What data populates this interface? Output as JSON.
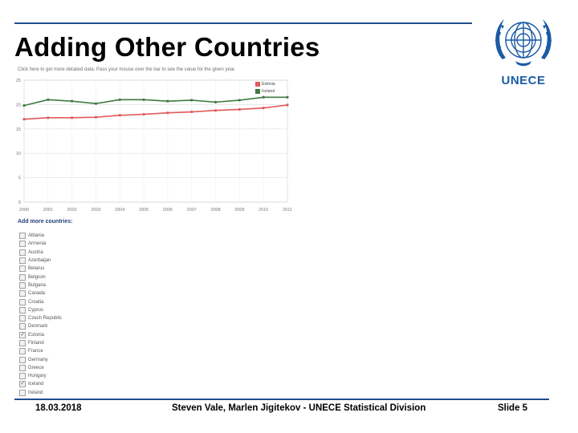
{
  "slide": {
    "title": "Adding Other Countries",
    "logo_text": "UNECE",
    "instruction": "Click here to get more detailed data. Pass your mouse over the bar to see the value for the given year.",
    "add_more_label": "Add more countries:",
    "footer": {
      "date": "18.03.2018",
      "center": "Steven Vale, Marlen Jigitekov - UNECE Statistical Division",
      "slide_number": "Slide 5"
    },
    "countries": [
      {
        "label": "Albania",
        "checked": false
      },
      {
        "label": "Armenia",
        "checked": false
      },
      {
        "label": "Austria",
        "checked": false
      },
      {
        "label": "Azerbaijan",
        "checked": false
      },
      {
        "label": "Belarus",
        "checked": false
      },
      {
        "label": "Belgium",
        "checked": false
      },
      {
        "label": "Bulgaria",
        "checked": false
      },
      {
        "label": "Canada",
        "checked": false
      },
      {
        "label": "Croatia",
        "checked": false
      },
      {
        "label": "Cyprus",
        "checked": false
      },
      {
        "label": "Czech Republic",
        "checked": false
      },
      {
        "label": "Denmark",
        "checked": false
      },
      {
        "label": "Estonia",
        "checked": true
      },
      {
        "label": "Finland",
        "checked": false
      },
      {
        "label": "France",
        "checked": false
      },
      {
        "label": "Germany",
        "checked": false
      },
      {
        "label": "Greece",
        "checked": false
      },
      {
        "label": "Hungary",
        "checked": false
      },
      {
        "label": "Iceland",
        "checked": true
      },
      {
        "label": "Ireland",
        "checked": false
      }
    ]
  },
  "chart_data": {
    "type": "line",
    "x": [
      "2000",
      "2001",
      "2002",
      "2003",
      "2004",
      "2005",
      "2006",
      "2007",
      "2008",
      "2009",
      "2010",
      "2011"
    ],
    "ylim": [
      0,
      25
    ],
    "yticks": [
      0,
      5,
      10,
      15,
      20,
      25
    ],
    "grid": true,
    "legend_position": "top-right",
    "series": [
      {
        "name": "Estonia",
        "color": "#e05a5a",
        "values": [
          17.0,
          17.3,
          17.3,
          17.4,
          17.8,
          18.0,
          18.3,
          18.5,
          18.8,
          19.0,
          19.3,
          19.9
        ]
      },
      {
        "name": "Iceland",
        "color": "#3e7a3e",
        "values": [
          19.8,
          21.0,
          20.7,
          20.2,
          21.0,
          21.0,
          20.7,
          20.9,
          20.5,
          20.9,
          21.5,
          21.5
        ]
      }
    ]
  }
}
